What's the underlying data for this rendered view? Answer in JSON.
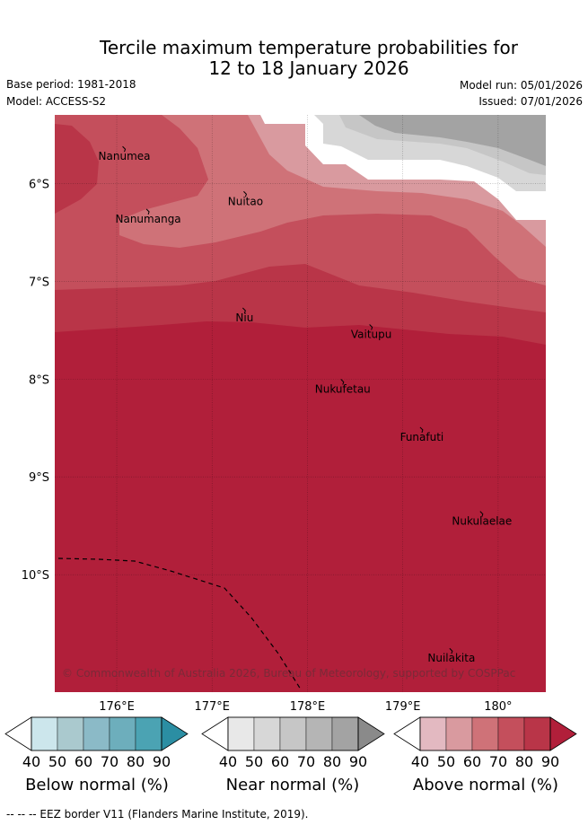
{
  "title": {
    "line1": "Tercile maximum temperature probabilities for",
    "line2": "12 to 18 January 2026"
  },
  "meta": {
    "base_period": "Base period: 1981-2018",
    "model": "Model: ACCESS-S2",
    "model_run": "Model run: 05/01/2026",
    "issued": "Issued: 07/01/2026"
  },
  "map": {
    "lat_ticks": [
      "6°S",
      "7°S",
      "8°S",
      "9°S",
      "10°S"
    ],
    "lon_ticks": [
      "176°E",
      "177°E",
      "178°E",
      "179°E",
      "180°"
    ],
    "lat_values": [
      -6,
      -7,
      -8,
      -9,
      -10
    ],
    "lon_values": [
      176,
      177,
      178,
      179,
      180
    ],
    "extent": {
      "lon_min": 175.35,
      "lon_max": 180.5,
      "lat_min": -11.2,
      "lat_max": -5.3
    },
    "copyright": "© Commonwealth of Australia 2026, Bureau of Meteorology, supported by COSPPac",
    "places": [
      {
        "name": "Nanumea",
        "lon": 176.08,
        "lat": -5.65
      },
      {
        "name": "Nuitao",
        "lon": 177.35,
        "lat": -6.11
      },
      {
        "name": "Nanumanga",
        "lon": 176.33,
        "lat": -6.29
      },
      {
        "name": "Niu",
        "lon": 177.34,
        "lat": -7.3
      },
      {
        "name": "Vaitupu",
        "lon": 178.67,
        "lat": -7.47
      },
      {
        "name": "Nukufetau",
        "lon": 178.37,
        "lat": -8.03
      },
      {
        "name": "Funafuti",
        "lon": 179.2,
        "lat": -8.52
      },
      {
        "name": "Nukulaelae",
        "lon": 179.83,
        "lat": -9.38
      },
      {
        "name": "Nuilakita",
        "lon": 179.51,
        "lat": -10.78
      }
    ]
  },
  "colors": {
    "above": [
      "#ffffff",
      "#e3b9c1",
      "#d99a9f",
      "#cf7278",
      "#c44f5c",
      "#b93548",
      "#b11f3a"
    ],
    "near": [
      "#ffffff",
      "#e8e8e8",
      "#d7d7d7",
      "#c6c6c6",
      "#b5b5b5",
      "#a3a3a3",
      "#8a8a8a"
    ],
    "below": [
      "#ffffff",
      "#cce6ec",
      "#aac9ce",
      "#8bbac7",
      "#6daebc",
      "#4ba3b3",
      "#2b8ea3"
    ]
  },
  "colorbars": [
    {
      "key": "below",
      "ticks": [
        "40",
        "50",
        "60",
        "70",
        "80",
        "90"
      ],
      "label": "Below normal (%)"
    },
    {
      "key": "near",
      "ticks": [
        "40",
        "50",
        "60",
        "70",
        "80",
        "90"
      ],
      "label": "Near normal (%)"
    },
    {
      "key": "above",
      "ticks": [
        "40",
        "50",
        "60",
        "70",
        "80",
        "90"
      ],
      "label": "Above normal (%)"
    }
  ],
  "footer": "--  --  -- EEZ border V11 (Flanders Marine Institute, 2019)."
}
